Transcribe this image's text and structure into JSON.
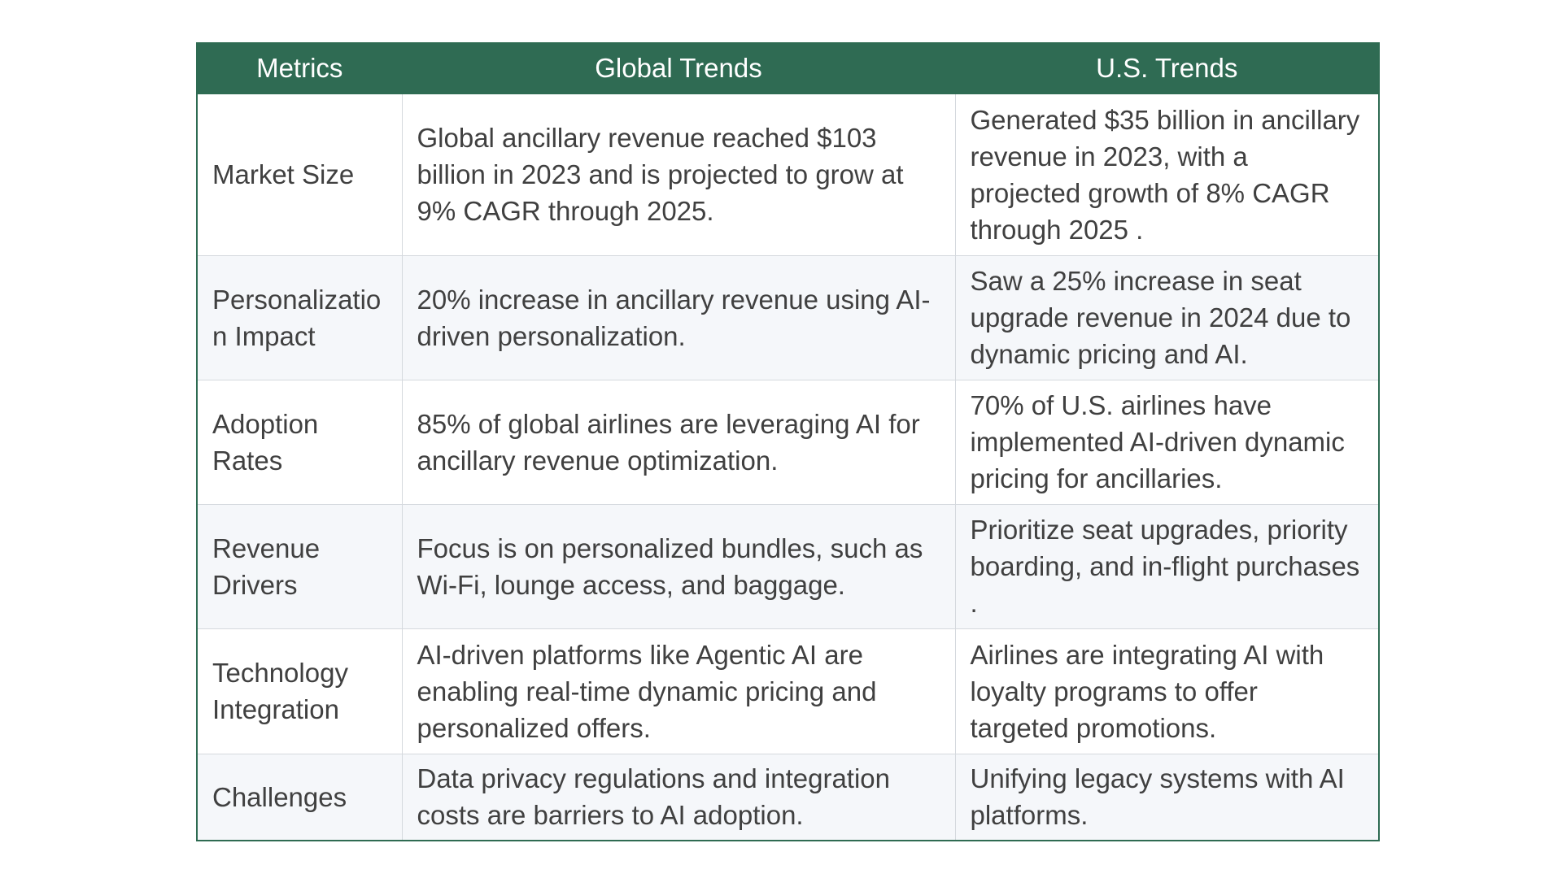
{
  "table": {
    "headers": [
      "Metrics",
      "Global Trends",
      "U.S. Trends"
    ],
    "rows": [
      {
        "metric": "Market Size",
        "global": "Global ancillary revenue reached $103 billion in 2023 and is projected to grow at 9% CAGR through 2025.",
        "us": "Generated $35 billion in ancillary revenue in 2023, with a projected growth of 8% CAGR through 2025 ."
      },
      {
        "metric": "Personalization Impact",
        "global": "20% increase in ancillary revenue using AI-driven personalization.",
        "us": "Saw a 25% increase in seat upgrade revenue in 2024 due to dynamic pricing and AI."
      },
      {
        "metric": "Adoption Rates",
        "global": "85% of global airlines are leveraging AI for ancillary revenue optimization.",
        "us": "70% of U.S. airlines have implemented AI-driven dynamic pricing for ancillaries."
      },
      {
        "metric": "Revenue Drivers",
        "global": "Focus is on personalized bundles, such as Wi-Fi, lounge access, and baggage.",
        "us": "Prioritize seat upgrades, priority boarding, and in-flight purchases ."
      },
      {
        "metric": "Technology Integration",
        "global": "AI-driven platforms like Agentic AI are enabling real-time dynamic pricing and personalized offers.",
        "us": "Airlines are integrating AI with loyalty programs to offer targeted promotions."
      },
      {
        "metric": "Challenges",
        "global": "Data privacy regulations and integration costs are barriers to AI adoption.",
        "us": "Unifying legacy systems with AI platforms."
      }
    ]
  },
  "colors": {
    "header_bg": "#2f6b53",
    "header_text": "#ffffff",
    "body_text": "#404040",
    "row_alt_bg": "#f5f7fa",
    "grid_line": "#d5d9de"
  }
}
